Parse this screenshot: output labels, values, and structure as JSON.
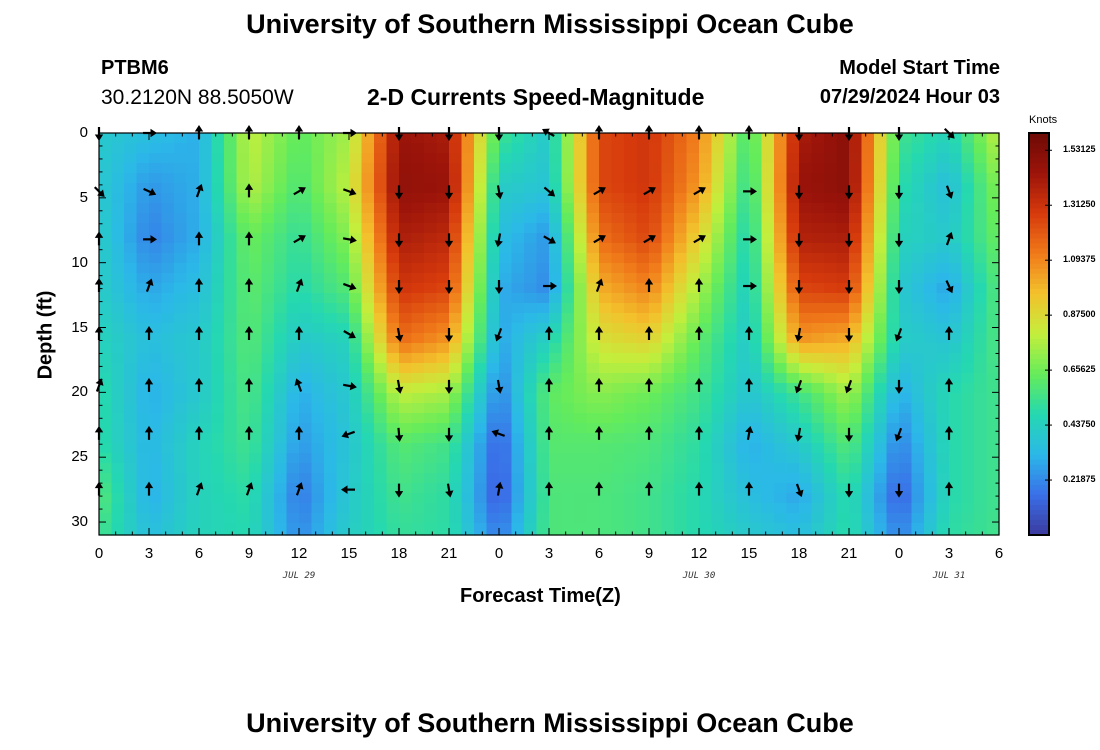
{
  "header": {
    "title": "University of Southern Mississippi Ocean Cube",
    "station_id": "PTBM6",
    "station_coords": "30.2120N  88.5050W",
    "plot_title": "2-D Currents Speed-Magnitude",
    "model_label": "Model Start Time",
    "model_time": "07/29/2024 Hour 03"
  },
  "footer": {
    "title": "University of Southern Mississippi Ocean Cube"
  },
  "colors": {
    "arrow": "#000000",
    "colormap": [
      "#3b3a9e",
      "#3a6fe8",
      "#2bb8e8",
      "#25d8b0",
      "#66ec5a",
      "#c4ee3c",
      "#f3c12c",
      "#f07a1a",
      "#d63a0c",
      "#9c140a",
      "#6e0a06"
    ]
  },
  "chart_data": {
    "type": "heatmap",
    "title": "2-D Currents Speed-Magnitude",
    "xlabel": "Forecast Time(Z)",
    "ylabel": "Depth (ft)",
    "x_range_hours": [
      0,
      54
    ],
    "ylim": [
      0,
      31
    ],
    "y_inverted": true,
    "x_tick_hours": [
      0,
      3,
      6,
      9,
      12,
      15,
      18,
      21,
      24,
      27,
      30,
      33,
      36,
      39,
      42,
      45,
      48,
      51,
      54
    ],
    "x_tick_labels": [
      "0",
      "3",
      "6",
      "9",
      "12",
      "15",
      "18",
      "21",
      "0",
      "3",
      "6",
      "9",
      "12",
      "15",
      "18",
      "21",
      "0",
      "3",
      "6"
    ],
    "y_ticks": [
      0,
      5,
      10,
      15,
      20,
      25,
      30
    ],
    "y_tick_labels": [
      "0",
      "5",
      "10",
      "15",
      "20",
      "25",
      "30"
    ],
    "date_labels": [
      {
        "hour": 12,
        "text": "JUL 29"
      },
      {
        "hour": 36,
        "text": "JUL 30"
      },
      {
        "hour": 51,
        "text": "JUL 31"
      }
    ],
    "colorbar": {
      "unit": "Knots",
      "vmin": 0.0,
      "vmax": 1.6,
      "tick_values": [
        1.53125,
        1.3125,
        1.09375,
        0.875,
        0.65625,
        0.4375,
        0.21875
      ],
      "tick_labels": [
        "1.53125",
        "1.31250",
        "1.09375",
        "0.87500",
        "0.65625",
        "0.43750",
        "0.21875"
      ]
    },
    "grid_hours": [
      0,
      3,
      6,
      9,
      12,
      15,
      18,
      21,
      24,
      27,
      30,
      33,
      36,
      39,
      42,
      45,
      48,
      51,
      54
    ],
    "grid_depths": [
      0,
      4,
      8,
      12,
      16,
      20,
      24,
      28,
      31
    ],
    "speed_knots": [
      [
        0.4,
        0.4,
        0.42,
        0.42,
        0.45,
        0.5,
        0.5,
        0.6,
        0.55
      ],
      [
        0.35,
        0.25,
        0.2,
        0.28,
        0.35,
        0.3,
        0.32,
        0.3,
        0.35
      ],
      [
        0.3,
        0.3,
        0.3,
        0.35,
        0.4,
        0.4,
        0.45,
        0.45,
        0.45
      ],
      [
        0.8,
        0.78,
        0.65,
        0.62,
        0.6,
        0.58,
        0.55,
        0.5,
        0.48
      ],
      [
        0.62,
        0.58,
        0.52,
        0.48,
        0.4,
        0.3,
        0.25,
        0.18,
        0.22
      ],
      [
        0.75,
        0.8,
        0.7,
        0.6,
        0.45,
        0.4,
        0.38,
        0.4,
        0.42
      ],
      [
        1.45,
        1.48,
        1.4,
        1.3,
        1.15,
        0.8,
        0.6,
        0.55,
        0.52
      ],
      [
        1.4,
        1.45,
        1.35,
        1.25,
        1.05,
        0.75,
        0.55,
        0.5,
        0.5
      ],
      [
        0.55,
        0.42,
        0.35,
        0.3,
        0.28,
        0.2,
        0.12,
        0.1,
        0.18
      ],
      [
        0.4,
        0.38,
        0.25,
        0.22,
        0.45,
        0.62,
        0.6,
        0.58,
        0.58
      ],
      [
        1.25,
        1.25,
        1.15,
        1.0,
        0.85,
        0.7,
        0.6,
        0.58,
        0.58
      ],
      [
        1.3,
        1.3,
        1.25,
        1.1,
        0.9,
        0.65,
        0.58,
        0.55,
        0.55
      ],
      [
        1.1,
        1.05,
        0.9,
        0.75,
        0.62,
        0.55,
        0.5,
        0.48,
        0.48
      ],
      [
        0.55,
        0.5,
        0.45,
        0.42,
        0.4,
        0.38,
        0.3,
        0.35,
        0.4
      ],
      [
        1.4,
        1.45,
        1.38,
        1.25,
        1.05,
        0.55,
        0.4,
        0.28,
        0.35
      ],
      [
        1.5,
        1.5,
        1.4,
        1.28,
        1.0,
        0.75,
        0.6,
        0.5,
        0.5
      ],
      [
        0.55,
        0.5,
        0.45,
        0.4,
        0.42,
        0.3,
        0.2,
        0.12,
        0.2
      ],
      [
        0.45,
        0.35,
        0.4,
        0.28,
        0.38,
        0.48,
        0.48,
        0.48,
        0.5
      ],
      [
        0.8,
        0.7,
        0.65,
        0.6,
        0.58,
        0.55,
        0.55,
        0.55,
        0.55
      ]
    ],
    "arrow_hours": [
      0,
      3,
      6,
      9,
      12,
      15,
      18,
      21,
      24,
      27,
      30,
      33,
      36,
      39,
      42,
      45,
      48,
      51
    ],
    "arrow_depths": [
      0,
      4.5,
      8.2,
      11.8,
      15.5,
      19.5,
      23.2,
      27.5
    ],
    "arrow_dir_deg": [
      [
        180,
        135,
        0,
        0,
        0,
        20,
        0,
        0
      ],
      [
        90,
        115,
        90,
        20,
        0,
        0,
        0,
        0
      ],
      [
        0,
        20,
        0,
        0,
        0,
        0,
        0,
        20
      ],
      [
        0,
        0,
        0,
        0,
        0,
        0,
        0,
        20
      ],
      [
        0,
        60,
        60,
        20,
        0,
        340,
        0,
        20
      ],
      [
        90,
        110,
        100,
        110,
        120,
        100,
        250,
        270
      ],
      [
        180,
        180,
        180,
        180,
        170,
        170,
        175,
        180
      ],
      [
        180,
        180,
        180,
        180,
        180,
        180,
        180,
        170
      ],
      [
        180,
        170,
        190,
        180,
        200,
        170,
        290,
        10
      ],
      [
        300,
        130,
        120,
        90,
        0,
        0,
        0,
        0
      ],
      [
        0,
        60,
        60,
        20,
        0,
        0,
        0,
        0
      ],
      [
        0,
        60,
        60,
        0,
        0,
        0,
        0,
        0
      ],
      [
        0,
        60,
        60,
        0,
        0,
        0,
        0,
        0
      ],
      [
        0,
        90,
        90,
        90,
        0,
        0,
        10,
        0
      ],
      [
        180,
        180,
        180,
        180,
        190,
        200,
        190,
        160
      ],
      [
        180,
        180,
        180,
        180,
        180,
        200,
        180,
        180
      ],
      [
        180,
        180,
        180,
        180,
        200,
        180,
        200,
        180
      ],
      [
        135,
        160,
        20,
        155,
        0,
        0,
        0,
        0
      ]
    ]
  }
}
